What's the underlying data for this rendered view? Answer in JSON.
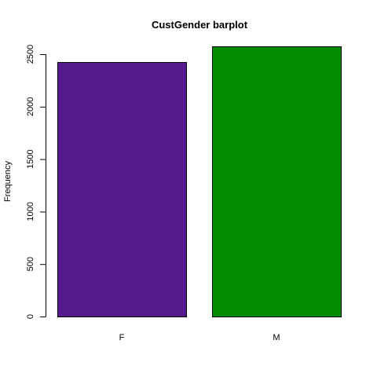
{
  "chart_data": {
    "type": "bar",
    "title": "CustGender barplot",
    "xlabel": "",
    "ylabel": "Frequency",
    "categories": [
      "F",
      "M"
    ],
    "values": [
      2425,
      2575
    ],
    "bar_colors": [
      "#551A8B",
      "#008B00"
    ],
    "yticks": [
      0,
      500,
      1000,
      1500,
      2000,
      2500
    ],
    "ytick_labels": [
      "0",
      "500",
      "1000",
      "1500",
      "2000",
      "2500"
    ],
    "ylim": [
      0,
      2575
    ],
    "grid": false,
    "legend": "none"
  }
}
